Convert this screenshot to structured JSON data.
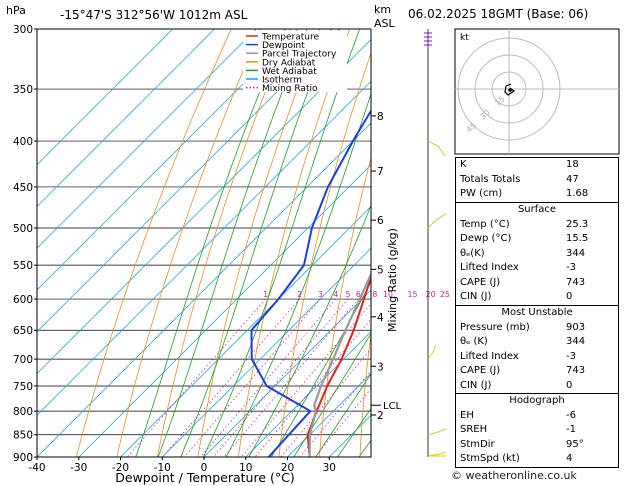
{
  "header": {
    "location": "-15°47'S  312°56'W  1012m  ASL",
    "datetime": "06.02.2025  18GMT  (Base: 06)",
    "hpa_label": "hPa",
    "km_label": "km",
    "asl_label": "ASL"
  },
  "chart_data": {
    "type": "line",
    "title": "-15°47'S  312°56'W  1012m  ASL",
    "xlabel": "Dewpoint / Temperature (°C)",
    "ylabel": "hPa",
    "right_label": "Mixing Ratio (g/kg)",
    "xlim": [
      -40,
      40
    ],
    "ylim": [
      900,
      300
    ],
    "x_ticks": [
      -40,
      -30,
      -20,
      -10,
      0,
      10,
      20,
      30
    ],
    "pressure_levels": [
      300,
      350,
      400,
      450,
      500,
      550,
      600,
      650,
      700,
      750,
      800,
      850,
      900
    ],
    "km_ticks": [
      {
        "label": "8",
        "p": 375
      },
      {
        "label": "7",
        "p": 432
      },
      {
        "label": "6",
        "p": 490
      },
      {
        "label": "5",
        "p": 556
      },
      {
        "label": "4",
        "p": 628
      },
      {
        "label": "3",
        "p": 713
      },
      {
        "label": "2",
        "p": 808
      }
    ],
    "lcl": {
      "label": "LCL",
      "p": 788
    },
    "mixing_ratio_labels": [
      "1",
      "2",
      "3",
      "4",
      "5",
      "6",
      "8",
      "10",
      "15",
      "20",
      "25"
    ],
    "legend": [
      "Temperature",
      "Dewpoint",
      "Parcel Trajectory",
      "Dry Adiabat",
      "Wet Adiabat",
      "Isotherm",
      "Mixing Ratio"
    ],
    "legend_placement": "top-left",
    "series": [
      {
        "name": "Temperature",
        "color": "#e8201c",
        "points": [
          [
            25.3,
            900
          ],
          [
            19.5,
            850
          ],
          [
            16,
            800
          ],
          [
            12.5,
            750
          ],
          [
            9.5,
            700
          ],
          [
            5.5,
            650
          ],
          [
            0.5,
            600
          ],
          [
            -5,
            550
          ],
          [
            -10.5,
            500
          ],
          [
            -16,
            450
          ],
          [
            -22,
            400
          ],
          [
            -30,
            350
          ],
          [
            -37,
            300
          ]
        ]
      },
      {
        "name": "Dewpoint",
        "color": "#1c3fe0",
        "points": [
          [
            15.5,
            900
          ],
          [
            15,
            850
          ],
          [
            14.5,
            800
          ],
          [
            -2,
            750
          ],
          [
            -12,
            700
          ],
          [
            -19,
            650
          ],
          [
            -20,
            600
          ],
          [
            -22,
            550
          ],
          [
            -29,
            500
          ],
          [
            -35,
            450
          ],
          [
            -40,
            400
          ],
          [
            -45,
            350
          ],
          [
            -45,
            300
          ]
        ]
      },
      {
        "name": "Parcel Trajectory",
        "color": "#999999",
        "points": [
          [
            25.3,
            900
          ],
          [
            20,
            850
          ],
          [
            15.8,
            800
          ],
          [
            14,
            788
          ],
          [
            11,
            750
          ],
          [
            7.5,
            700
          ],
          [
            3.5,
            650
          ],
          [
            -0.5,
            600
          ],
          [
            -5,
            550
          ],
          [
            -10,
            500
          ],
          [
            -15.5,
            450
          ],
          [
            -22,
            400
          ],
          [
            -29.5,
            350
          ],
          [
            -38,
            300
          ]
        ]
      }
    ]
  },
  "hodograph": {
    "label": "kt",
    "ring_labels": [
      "45",
      "30",
      "15"
    ]
  },
  "indices": [
    {
      "label": "K",
      "value": "18"
    },
    {
      "label": "Totals Totals",
      "value": "47"
    },
    {
      "label": "PW (cm)",
      "value": "1.68"
    }
  ],
  "surface": {
    "title": "Surface",
    "rows": [
      {
        "label": "Temp (°C)",
        "value": "25.3"
      },
      {
        "label": "Dewp (°C)",
        "value": "15.5"
      },
      {
        "label": "θₑ(K)",
        "value": "344"
      },
      {
        "label": "Lifted Index",
        "value": "-3"
      },
      {
        "label": "CAPE (J)",
        "value": "743"
      },
      {
        "label": "CIN (J)",
        "value": "0"
      }
    ]
  },
  "most_unstable": {
    "title": "Most Unstable",
    "rows": [
      {
        "label": "Pressure (mb)",
        "value": "903"
      },
      {
        "label": "θₑ (K)",
        "value": "344"
      },
      {
        "label": "Lifted Index",
        "value": "-3"
      },
      {
        "label": "CAPE (J)",
        "value": "743"
      },
      {
        "label": "CIN (J)",
        "value": "0"
      }
    ]
  },
  "hodograph_table": {
    "title": "Hodograph",
    "rows": [
      {
        "label": "EH",
        "value": "-6"
      },
      {
        "label": "SREH",
        "value": "-1"
      },
      {
        "label": "StmDir",
        "value": "95°"
      },
      {
        "label": "StmSpd (kt)",
        "value": "4"
      }
    ]
  },
  "credit": "© weatheronline.co.uk",
  "colors": {
    "temperature": "#e8201c",
    "dewpoint": "#1c3fe0",
    "parcel": "#999999",
    "dry_adiabat": "#e8901c",
    "wet_adiabat": "#1ca01c",
    "isotherm": "#18a8e0",
    "mixing_ratio": "#d020a0"
  }
}
